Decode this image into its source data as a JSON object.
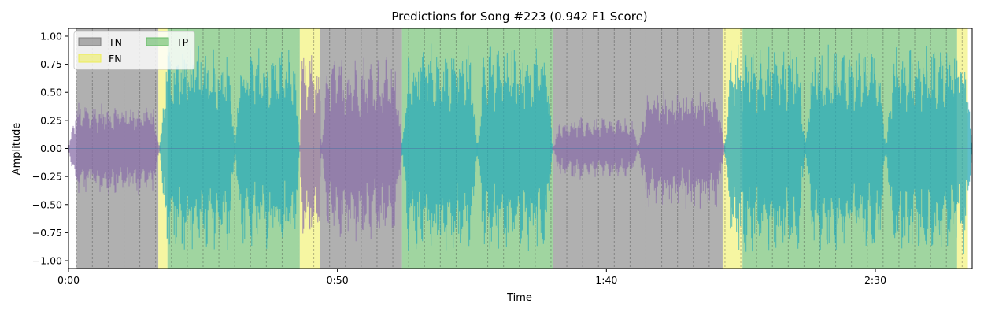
{
  "chart_data": {
    "type": "area",
    "title": "Predictions for Song #223 (0.942 F1 Score)",
    "xlabel": "Time",
    "ylabel": "Amplitude",
    "xlim": [
      0,
      168
    ],
    "ylim": [
      -1.07,
      1.07
    ],
    "x_ticks": [
      {
        "value": 0,
        "label": "0:00"
      },
      {
        "value": 50,
        "label": "0:50"
      },
      {
        "value": 100,
        "label": "1:40"
      },
      {
        "value": 150,
        "label": "2:30"
      }
    ],
    "y_ticks": [
      {
        "value": -1.0,
        "label": "−1.00"
      },
      {
        "value": -0.75,
        "label": "−0.75"
      },
      {
        "value": -0.5,
        "label": "−0.50"
      },
      {
        "value": -0.25,
        "label": "−0.25"
      },
      {
        "value": 0.0,
        "label": "0.00"
      },
      {
        "value": 0.25,
        "label": "0.25"
      },
      {
        "value": 0.5,
        "label": "0.50"
      },
      {
        "value": 0.75,
        "label": "0.75"
      },
      {
        "value": 1.0,
        "label": "1.00"
      }
    ],
    "legend": {
      "placement": "top-left",
      "entries": [
        {
          "label": "TN",
          "color": "#7f7f7f"
        },
        {
          "label": "FN",
          "color": "#eeee55"
        },
        {
          "label": "TP",
          "color": "#66bb66"
        }
      ]
    },
    "regions": [
      {
        "class": "TN",
        "start": 1.5,
        "end": 16.7
      },
      {
        "class": "FN",
        "start": 16.7,
        "end": 18.4
      },
      {
        "class": "TP",
        "start": 18.4,
        "end": 43.0
      },
      {
        "class": "FN",
        "start": 43.0,
        "end": 46.7
      },
      {
        "class": "TN",
        "start": 46.7,
        "end": 62.0
      },
      {
        "class": "TP",
        "start": 62.0,
        "end": 90.1
      },
      {
        "class": "TN",
        "start": 90.1,
        "end": 121.6
      },
      {
        "class": "FN",
        "start": 121.6,
        "end": 125.3
      },
      {
        "class": "TP",
        "start": 125.3,
        "end": 165.2
      },
      {
        "class": "FN",
        "start": 165.2,
        "end": 167.2
      }
    ],
    "waveform_envelope": [
      {
        "start": 0,
        "end": 17,
        "amp": 0.42,
        "color": "#8a6fa8"
      },
      {
        "start": 17,
        "end": 31,
        "amp": 0.95,
        "color": "#2aa9b8"
      },
      {
        "start": 31,
        "end": 43,
        "amp": 0.92,
        "color": "#2aa9b8"
      },
      {
        "start": 43,
        "end": 47,
        "amp": 0.85,
        "color": "#8a6fa8"
      },
      {
        "start": 47,
        "end": 62,
        "amp": 0.85,
        "color": "#8a6fa8"
      },
      {
        "start": 62,
        "end": 76,
        "amp": 0.95,
        "color": "#2aa9b8"
      },
      {
        "start": 76,
        "end": 90,
        "amp": 0.95,
        "color": "#2aa9b8"
      },
      {
        "start": 90,
        "end": 106,
        "amp": 0.28,
        "color": "#8a6fa8"
      },
      {
        "start": 106,
        "end": 122,
        "amp": 0.55,
        "color": "#8a6fa8"
      },
      {
        "start": 122,
        "end": 137,
        "amp": 0.95,
        "color": "#2aa9b8"
      },
      {
        "start": 137,
        "end": 152,
        "amp": 0.93,
        "color": "#2aa9b8"
      },
      {
        "start": 152,
        "end": 168,
        "amp": 0.95,
        "color": "#2aa9b8"
      }
    ],
    "colors": {
      "TN": "#7f7f7f",
      "FN": "#eeee55",
      "TP": "#66bb66"
    },
    "grid": false
  }
}
